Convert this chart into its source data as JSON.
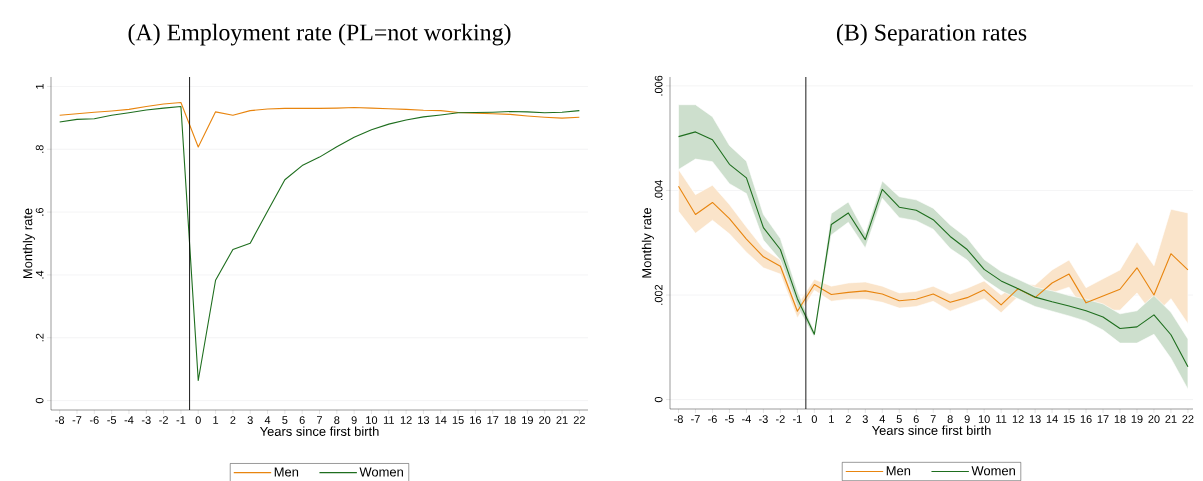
{
  "chart_data": [
    {
      "type": "line",
      "title": "(A) Employment rate (PL=not working)",
      "xlabel": "Years since first birth",
      "ylabel": "Monthly rate",
      "x": [
        -8,
        -7,
        -6,
        -5,
        -4,
        -3,
        -2,
        -1,
        0,
        1,
        2,
        3,
        4,
        5,
        6,
        7,
        8,
        9,
        10,
        11,
        12,
        13,
        14,
        15,
        16,
        17,
        18,
        19,
        20,
        21,
        22
      ],
      "series": [
        {
          "name": "Men",
          "color": "#e8850f",
          "values": [
            0.908,
            0.913,
            0.918,
            0.922,
            0.927,
            0.936,
            0.944,
            0.949,
            0.807,
            0.919,
            0.908,
            0.923,
            0.928,
            0.93,
            0.93,
            0.93,
            0.931,
            0.933,
            0.931,
            0.929,
            0.927,
            0.924,
            0.923,
            0.917,
            0.915,
            0.913,
            0.911,
            0.906,
            0.902,
            0.899,
            0.902
          ]
        },
        {
          "name": "Women",
          "color": "#1e6e1e",
          "values": [
            0.887,
            0.895,
            0.897,
            0.908,
            0.916,
            0.925,
            0.931,
            0.936,
            0.064,
            0.383,
            0.481,
            0.501,
            0.603,
            0.703,
            0.748,
            0.775,
            0.808,
            0.838,
            0.862,
            0.88,
            0.893,
            0.903,
            0.909,
            0.916,
            0.917,
            0.918,
            0.92,
            0.919,
            0.916,
            0.918,
            0.923
          ]
        }
      ],
      "xlim": [
        -8.5,
        22.5
      ],
      "ylim": [
        -0.03,
        1.03
      ],
      "xticks": [
        -8,
        -7,
        -6,
        -5,
        -4,
        -3,
        -2,
        -1,
        0,
        1,
        2,
        3,
        4,
        5,
        6,
        7,
        8,
        9,
        10,
        11,
        12,
        13,
        14,
        15,
        16,
        17,
        18,
        19,
        20,
        21,
        22
      ],
      "yticks": [
        0,
        {
          "value": 0.2,
          "label": ".2"
        },
        {
          "value": 0.4,
          "label": ".4"
        },
        {
          "value": 0.6,
          "label": ".6"
        },
        {
          "value": 0.8,
          "label": ".8"
        },
        1
      ],
      "ref_lines": [
        {
          "axis": "x",
          "value": -0.5,
          "color": "#000000"
        }
      ],
      "grid": "y",
      "legend": "bottom"
    },
    {
      "type": "line",
      "title": "(B) Separation rates",
      "xlabel": "Years since first birth",
      "ylabel": "Monthly rate",
      "x": [
        -8,
        -7,
        -6,
        -5,
        -4,
        -3,
        -2,
        -1,
        0,
        1,
        2,
        3,
        4,
        5,
        6,
        7,
        8,
        9,
        10,
        11,
        12,
        13,
        14,
        15,
        16,
        17,
        18,
        19,
        20,
        21,
        22
      ],
      "series": [
        {
          "name": "Men",
          "color": "#e8850f",
          "values": [
            0.00408,
            0.00354,
            0.00377,
            0.00346,
            0.00307,
            0.00273,
            0.00255,
            0.00169,
            0.0022,
            0.00201,
            0.00205,
            0.00208,
            0.00202,
            0.00189,
            0.00192,
            0.00202,
            0.00186,
            0.00195,
            0.0021,
            0.00181,
            0.00212,
            0.00195,
            0.00223,
            0.0024,
            0.00185,
            0.00198,
            0.00211,
            0.00252,
            0.002,
            0.00279,
            0.00248
          ],
          "lower": [
            0.0036,
            0.00318,
            0.00343,
            0.00317,
            0.00282,
            0.00252,
            0.0024,
            0.00156,
            0.00209,
            0.00188,
            0.00192,
            0.00192,
            0.00186,
            0.00175,
            0.00178,
            0.00188,
            0.00169,
            0.00181,
            0.00193,
            0.00166,
            0.00197,
            0.00178,
            0.00204,
            0.00215,
            0.00164,
            0.00171,
            0.00171,
            0.00204,
            0.0016,
            0.00193,
            0.00145
          ],
          "upper": [
            0.0044,
            0.00392,
            0.0041,
            0.00373,
            0.0033,
            0.00289,
            0.00267,
            0.00181,
            0.0023,
            0.00217,
            0.00223,
            0.00225,
            0.00217,
            0.00204,
            0.00207,
            0.00217,
            0.00202,
            0.00213,
            0.00227,
            0.002,
            0.00223,
            0.00219,
            0.00248,
            0.00267,
            0.00214,
            0.00231,
            0.00248,
            0.00302,
            0.00256,
            0.00364,
            0.00357
          ]
        },
        {
          "name": "Women",
          "color": "#1e6e1e",
          "values": [
            0.00503,
            0.00512,
            0.00497,
            0.0045,
            0.00424,
            0.00329,
            0.00287,
            0.00193,
            0.00125,
            0.00335,
            0.00357,
            0.00306,
            0.00402,
            0.00368,
            0.00362,
            0.00344,
            0.00312,
            0.00287,
            0.00249,
            0.00227,
            0.00212,
            0.00196,
            0.00187,
            0.00179,
            0.0017,
            0.00158,
            0.00136,
            0.00139,
            0.00162,
            0.00124,
            0.00063
          ],
          "lower": [
            0.0044,
            0.0046,
            0.00455,
            0.00413,
            0.00394,
            0.00305,
            0.00267,
            0.00178,
            0.00119,
            0.00315,
            0.00339,
            0.0029,
            0.00385,
            0.00348,
            0.00342,
            0.00326,
            0.00289,
            0.00267,
            0.0023,
            0.00208,
            0.00193,
            0.00178,
            0.00169,
            0.0016,
            0.0015,
            0.00133,
            0.00108,
            0.00108,
            0.00125,
            0.00079,
            0.0002
          ],
          "upper": [
            0.00564,
            0.00564,
            0.00541,
            0.00486,
            0.00456,
            0.00354,
            0.00308,
            0.00208,
            0.0013,
            0.00356,
            0.00378,
            0.00318,
            0.00418,
            0.00388,
            0.00382,
            0.00366,
            0.00334,
            0.00309,
            0.00268,
            0.00245,
            0.0023,
            0.00215,
            0.00208,
            0.00199,
            0.00192,
            0.00183,
            0.00164,
            0.0017,
            0.00199,
            0.00167,
            0.00116
          ]
        }
      ],
      "xlim": [
        -8.5,
        22.3
      ],
      "ylim": [
        -0.00018,
        0.00617
      ],
      "xticks": [
        -8,
        -7,
        -6,
        -5,
        -4,
        -3,
        -2,
        -1,
        0,
        1,
        2,
        3,
        4,
        5,
        6,
        7,
        8,
        9,
        10,
        11,
        12,
        13,
        14,
        15,
        16,
        17,
        18,
        19,
        20,
        21,
        22
      ],
      "yticks": [
        0,
        {
          "value": 0.002,
          "label": ".002"
        },
        {
          "value": 0.004,
          "label": ".004"
        },
        {
          "value": 0.006,
          "label": ".006"
        }
      ],
      "ref_lines": [
        {
          "axis": "x",
          "value": -0.5,
          "color": "#000000"
        }
      ],
      "grid": "y",
      "legend": "bottom"
    }
  ]
}
